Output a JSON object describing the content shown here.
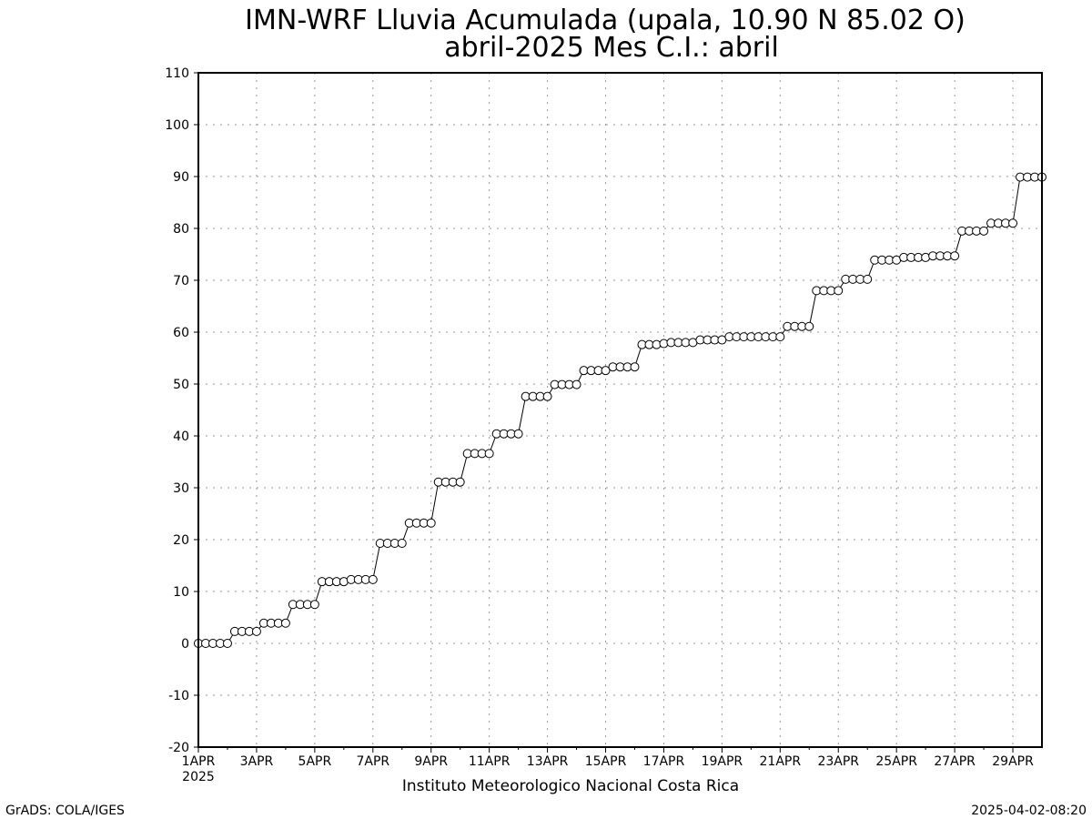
{
  "title_line1": "IMN-WRF  Lluvia Acumulada (upala, 10.90  N 85.02  O)",
  "title_line2": "abril-2025 Mes C.I.: abril",
  "footer_left": "GrADS: COLA/IGES",
  "footer_right": "2025-04-02-08:20",
  "colors": {
    "line": "#000000",
    "grid": "#9a9a9a",
    "marker_fill": "#ffffff",
    "frame": "#000000"
  },
  "chart_data": {
    "type": "line",
    "title": "IMN-WRF  Lluvia Acumulada (upala, 10.90  N 85.02  O)",
    "subtitle": "abril-2025 Mes C.I.: abril",
    "xlabel": "Instituto Meteorologico Nacional Costa Rica",
    "ylabel": "",
    "x_unit": "days since 2025-04-01 00:00, 6-hourly steps",
    "xlim": [
      0,
      29
    ],
    "ylim": [
      -20,
      110
    ],
    "grid": true,
    "marker": "open-circle",
    "x_ticks": [
      {
        "label": "1APR",
        "sublabel": "2025",
        "day": 0
      },
      {
        "label": "3APR",
        "day": 2
      },
      {
        "label": "5APR",
        "day": 4
      },
      {
        "label": "7APR",
        "day": 6
      },
      {
        "label": "9APR",
        "day": 8
      },
      {
        "label": "11APR",
        "day": 10
      },
      {
        "label": "13APR",
        "day": 12
      },
      {
        "label": "15APR",
        "day": 14
      },
      {
        "label": "17APR",
        "day": 16
      },
      {
        "label": "19APR",
        "day": 18
      },
      {
        "label": "21APR",
        "day": 20
      },
      {
        "label": "23APR",
        "day": 22
      },
      {
        "label": "25APR",
        "day": 24
      },
      {
        "label": "27APR",
        "day": 26
      },
      {
        "label": "29APR",
        "day": 28
      }
    ],
    "y_ticks": [
      -20,
      -10,
      0,
      10,
      20,
      30,
      40,
      50,
      60,
      70,
      80,
      90,
      100,
      110
    ],
    "series": [
      {
        "name": "Lluvia Acumulada",
        "x_step_days": 0.25,
        "values": [
          0.0,
          0.0,
          0.0,
          0.0,
          0.0,
          2.3,
          2.3,
          2.3,
          2.3,
          3.9,
          3.9,
          3.9,
          3.9,
          7.5,
          7.5,
          7.5,
          7.5,
          11.9,
          11.9,
          11.9,
          11.9,
          12.3,
          12.3,
          12.3,
          12.3,
          19.3,
          19.3,
          19.3,
          19.3,
          23.2,
          23.2,
          23.2,
          23.2,
          31.1,
          31.1,
          31.1,
          31.1,
          36.6,
          36.6,
          36.6,
          36.6,
          40.4,
          40.4,
          40.4,
          40.4,
          47.6,
          47.6,
          47.6,
          47.6,
          49.9,
          49.9,
          49.9,
          49.9,
          52.6,
          52.6,
          52.6,
          52.6,
          53.3,
          53.3,
          53.3,
          53.3,
          57.6,
          57.6,
          57.6,
          57.8,
          58.0,
          58.0,
          58.0,
          58.0,
          58.5,
          58.5,
          58.5,
          58.5,
          59.1,
          59.1,
          59.1,
          59.1,
          59.1,
          59.1,
          59.1,
          59.1,
          61.1,
          61.1,
          61.1,
          61.1,
          68.0,
          68.0,
          68.0,
          68.0,
          70.2,
          70.2,
          70.2,
          70.2,
          73.9,
          73.9,
          73.9,
          73.9,
          74.4,
          74.4,
          74.4,
          74.4,
          74.7,
          74.7,
          74.7,
          74.7,
          79.5,
          79.5,
          79.5,
          79.5,
          81.0,
          81.0,
          81.0,
          81.0,
          89.9,
          89.9,
          89.9,
          89.9
        ]
      }
    ]
  }
}
